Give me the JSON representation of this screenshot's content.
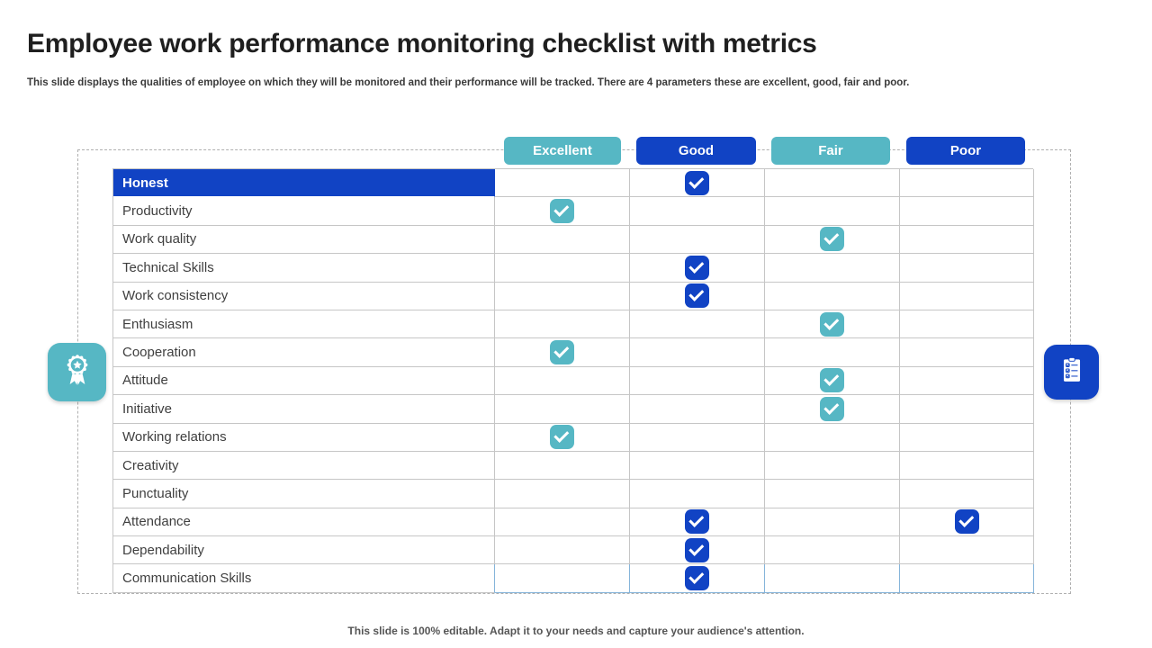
{
  "slide": {
    "title": "Employee work performance monitoring checklist with metrics",
    "subtitle": "This slide displays the qualities of employee on which they will be monitored and their performance will be tracked. There are 4 parameters these are excellent, good, fair and poor.",
    "footer": "This slide is 100% editable. Adapt it to your needs and capture your audience's attention."
  },
  "colors": {
    "teal": "#56b7c4",
    "blue": "#1143c4"
  },
  "icons": {
    "left": "award-ribbon-icon",
    "right": "clipboard-checklist-icon",
    "check": "checkmark-icon"
  },
  "check_glyph": "✓",
  "table": {
    "columns": [
      {
        "label": "Excellent",
        "color": "teal"
      },
      {
        "label": "Good",
        "color": "blue"
      },
      {
        "label": "Fair",
        "color": "teal"
      },
      {
        "label": "Poor",
        "color": "blue"
      }
    ],
    "rows": [
      {
        "label": "Honest",
        "highlight": true,
        "checks": [
          false,
          true,
          false,
          false
        ]
      },
      {
        "label": "Productivity",
        "highlight": false,
        "checks": [
          true,
          false,
          false,
          false
        ]
      },
      {
        "label": "Work quality",
        "highlight": false,
        "checks": [
          false,
          false,
          true,
          false
        ]
      },
      {
        "label": "Technical Skills",
        "highlight": false,
        "checks": [
          false,
          true,
          false,
          false
        ]
      },
      {
        "label": "Work consistency",
        "highlight": false,
        "checks": [
          false,
          true,
          false,
          false
        ]
      },
      {
        "label": "Enthusiasm",
        "highlight": false,
        "checks": [
          false,
          false,
          true,
          false
        ]
      },
      {
        "label": "Cooperation",
        "highlight": false,
        "checks": [
          true,
          false,
          false,
          false
        ]
      },
      {
        "label": "Attitude",
        "highlight": false,
        "checks": [
          false,
          false,
          true,
          false
        ]
      },
      {
        "label": "Initiative",
        "highlight": false,
        "checks": [
          false,
          false,
          true,
          false
        ]
      },
      {
        "label": "Working relations",
        "highlight": false,
        "checks": [
          true,
          false,
          false,
          false
        ]
      },
      {
        "label": "Creativity",
        "highlight": false,
        "checks": [
          false,
          false,
          false,
          false
        ]
      },
      {
        "label": "Punctuality",
        "highlight": false,
        "checks": [
          false,
          false,
          false,
          false
        ]
      },
      {
        "label": "Attendance",
        "highlight": false,
        "checks": [
          false,
          true,
          false,
          true
        ]
      },
      {
        "label": "Dependability",
        "highlight": false,
        "checks": [
          false,
          true,
          false,
          false
        ]
      },
      {
        "label": "Communication Skills",
        "highlight": false,
        "checks": [
          false,
          true,
          false,
          false
        ]
      }
    ]
  }
}
